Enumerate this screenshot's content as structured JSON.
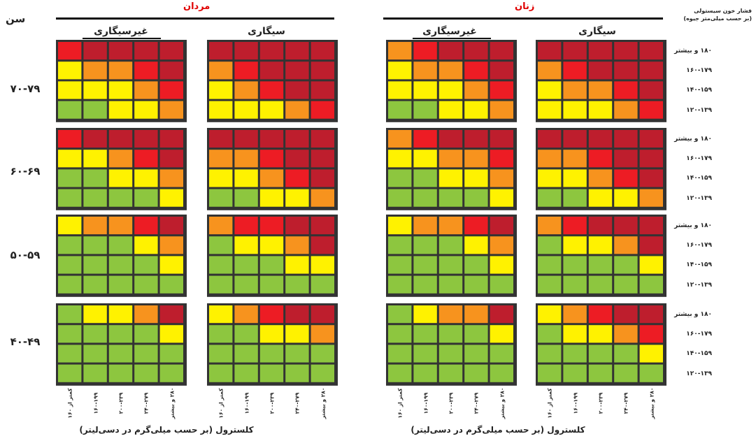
{
  "header": {
    "age_title": "سن",
    "bp_title_line1": "فشار خون سیستولی",
    "bp_title_line2": "(بر حسب میلی‌متر جیوه)"
  },
  "sexes": {
    "men": "مردان",
    "women": "زنان"
  },
  "smoking": {
    "non_smoker": "غیرسیگاری",
    "smoker": "سیگاری"
  },
  "age_groups": [
    "۷۰-۷۹",
    "۶۰-۶۹",
    "۵۰-۵۹",
    "۴۰-۴۹"
  ],
  "bp_levels": [
    "۱۸۰ و بیشتر",
    "۱۶۰-۱۷۹",
    "۱۴۰-۱۵۹",
    "۱۲۰-۱۳۹"
  ],
  "cholesterol_levels": [
    "کمتر از ۱۶۰",
    "۱۶۰-۱۹۹",
    "۲۰۰-۲۳۹",
    "۲۴۰-۲۷۹",
    "۲۸۰ و بیشتر"
  ],
  "x_title": "کلسترول (بر حسب میلی‌گرم در دسی‌لیتر)",
  "colors": {
    "1": "#8dc63f",
    "2": "#fff200",
    "3": "#f7931e",
    "4": "#ed1c24",
    "5": "#be1e2d",
    "border": "#333333"
  },
  "chart_data": {
    "type": "heatmap",
    "note_levels": "1=green, 2=yellow, 3=orange, 4=red, 5=dark red",
    "panels": [
      {
        "sex": "مردان",
        "smoking": "غیرسیگاری",
        "age": "۷۰-۷۹",
        "grid": [
          [
            4,
            5,
            5,
            5,
            5
          ],
          [
            2,
            3,
            3,
            4,
            5
          ],
          [
            2,
            2,
            2,
            3,
            4
          ],
          [
            1,
            1,
            2,
            2,
            3
          ]
        ]
      },
      {
        "sex": "مردان",
        "smoking": "سیگاری",
        "age": "۷۰-۷۹",
        "grid": [
          [
            5,
            5,
            5,
            5,
            5
          ],
          [
            3,
            4,
            5,
            5,
            5
          ],
          [
            2,
            3,
            4,
            5,
            5
          ],
          [
            2,
            2,
            2,
            3,
            4
          ]
        ]
      },
      {
        "sex": "زنان",
        "smoking": "غیرسیگاری",
        "age": "۷۰-۷۹",
        "grid": [
          [
            3,
            4,
            5,
            5,
            5
          ],
          [
            2,
            3,
            3,
            4,
            5
          ],
          [
            2,
            2,
            2,
            3,
            4
          ],
          [
            1,
            1,
            2,
            2,
            3
          ]
        ]
      },
      {
        "sex": "زنان",
        "smoking": "سیگاری",
        "age": "۷۰-۷۹",
        "grid": [
          [
            5,
            5,
            5,
            5,
            5
          ],
          [
            3,
            4,
            5,
            5,
            5
          ],
          [
            2,
            3,
            3,
            4,
            5
          ],
          [
            2,
            2,
            2,
            3,
            4
          ]
        ]
      },
      {
        "sex": "مردان",
        "smoking": "غیرسیگاری",
        "age": "۶۰-۶۹",
        "grid": [
          [
            4,
            5,
            5,
            5,
            5
          ],
          [
            2,
            2,
            3,
            4,
            5
          ],
          [
            1,
            1,
            2,
            2,
            3
          ],
          [
            1,
            1,
            1,
            1,
            2
          ]
        ]
      },
      {
        "sex": "مردان",
        "smoking": "سیگاری",
        "age": "۶۰-۶۹",
        "grid": [
          [
            5,
            5,
            5,
            5,
            5
          ],
          [
            3,
            3,
            4,
            5,
            5
          ],
          [
            2,
            2,
            3,
            4,
            5
          ],
          [
            1,
            1,
            2,
            2,
            3
          ]
        ]
      },
      {
        "sex": "زنان",
        "smoking": "غیرسیگاری",
        "age": "۶۰-۶۹",
        "grid": [
          [
            3,
            4,
            5,
            5,
            5
          ],
          [
            2,
            2,
            3,
            3,
            4
          ],
          [
            1,
            1,
            2,
            2,
            3
          ],
          [
            1,
            1,
            1,
            1,
            2
          ]
        ]
      },
      {
        "sex": "زنان",
        "smoking": "سیگاری",
        "age": "۶۰-۶۹",
        "grid": [
          [
            5,
            5,
            5,
            5,
            5
          ],
          [
            3,
            3,
            4,
            5,
            5
          ],
          [
            2,
            2,
            3,
            4,
            5
          ],
          [
            1,
            1,
            2,
            2,
            3
          ]
        ]
      },
      {
        "sex": "مردان",
        "smoking": "غیرسیگاری",
        "age": "۵۰-۵۹",
        "grid": [
          [
            2,
            3,
            3,
            4,
            5
          ],
          [
            1,
            1,
            1,
            2,
            3
          ],
          [
            1,
            1,
            1,
            1,
            2
          ],
          [
            1,
            1,
            1,
            1,
            1
          ]
        ]
      },
      {
        "sex": "مردان",
        "smoking": "سیگاری",
        "age": "۵۰-۵۹",
        "grid": [
          [
            3,
            4,
            4,
            5,
            5
          ],
          [
            1,
            2,
            2,
            3,
            5
          ],
          [
            1,
            1,
            1,
            2,
            2
          ],
          [
            1,
            1,
            1,
            1,
            1
          ]
        ]
      },
      {
        "sex": "زنان",
        "smoking": "غیرسیگاری",
        "age": "۵۰-۵۹",
        "grid": [
          [
            2,
            3,
            3,
            4,
            5
          ],
          [
            1,
            1,
            1,
            2,
            3
          ],
          [
            1,
            1,
            1,
            1,
            2
          ],
          [
            1,
            1,
            1,
            1,
            1
          ]
        ]
      },
      {
        "sex": "زنان",
        "smoking": "سیگاری",
        "age": "۵۰-۵۹",
        "grid": [
          [
            3,
            4,
            5,
            5,
            5
          ],
          [
            1,
            2,
            2,
            3,
            5
          ],
          [
            1,
            1,
            1,
            1,
            2
          ],
          [
            1,
            1,
            1,
            1,
            1
          ]
        ]
      },
      {
        "sex": "مردان",
        "smoking": "غیرسیگاری",
        "age": "۴۰-۴۹",
        "grid": [
          [
            1,
            2,
            2,
            3,
            5
          ],
          [
            1,
            1,
            1,
            1,
            2
          ],
          [
            1,
            1,
            1,
            1,
            1
          ],
          [
            1,
            1,
            1,
            1,
            1
          ]
        ]
      },
      {
        "sex": "مردان",
        "smoking": "سیگاری",
        "age": "۴۰-۴۹",
        "grid": [
          [
            2,
            3,
            4,
            5,
            5
          ],
          [
            1,
            1,
            2,
            2,
            3
          ],
          [
            1,
            1,
            1,
            1,
            1
          ],
          [
            1,
            1,
            1,
            1,
            1
          ]
        ]
      },
      {
        "sex": "زنان",
        "smoking": "غیرسیگاری",
        "age": "۴۰-۴۹",
        "grid": [
          [
            1,
            2,
            3,
            3,
            5
          ],
          [
            1,
            1,
            1,
            1,
            2
          ],
          [
            1,
            1,
            1,
            1,
            1
          ],
          [
            1,
            1,
            1,
            1,
            1
          ]
        ]
      },
      {
        "sex": "زنان",
        "smoking": "سیگاری",
        "age": "۴۰-۴۹",
        "grid": [
          [
            2,
            3,
            4,
            5,
            5
          ],
          [
            1,
            2,
            2,
            3,
            4
          ],
          [
            1,
            1,
            1,
            1,
            2
          ],
          [
            1,
            1,
            1,
            1,
            1
          ]
        ]
      }
    ]
  }
}
